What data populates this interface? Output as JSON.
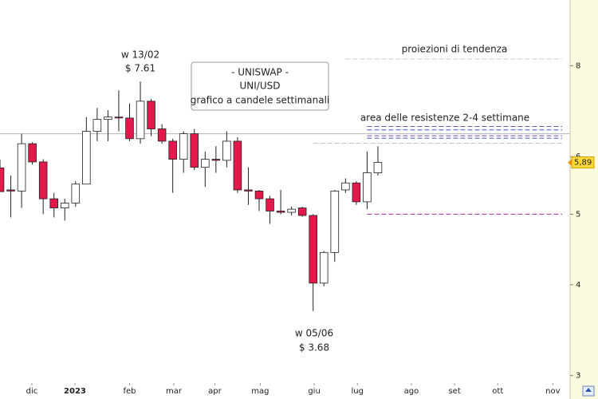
{
  "chart_data": {
    "type": "candlestick",
    "title_lines": [
      "- UNISWAP -",
      "UNI/USD",
      "grafico a candele settimanali"
    ],
    "x": [
      0,
      1,
      2,
      3,
      4,
      5,
      6,
      7,
      8,
      9,
      10,
      11,
      12,
      13,
      14,
      15,
      16,
      17,
      18,
      19,
      20,
      21,
      22,
      23,
      24,
      25,
      26,
      27,
      28,
      29,
      30,
      31,
      32,
      33,
      34,
      35
    ],
    "open": [
      5.79,
      5.4,
      5.38,
      6.25,
      5.9,
      5.25,
      5.1,
      5.18,
      5.5,
      6.5,
      6.75,
      6.8,
      6.78,
      6.35,
      7.15,
      6.55,
      6.3,
      5.95,
      6.45,
      5.8,
      5.95,
      5.93,
      6.3,
      5.4,
      5.38,
      5.25,
      5.05,
      5.03,
      5.1,
      4.98,
      4.02,
      4.43,
      5.4,
      5.52,
      5.2,
      5.7
    ],
    "high": [
      5.94,
      5.65,
      6.45,
      6.28,
      5.95,
      5.35,
      5.25,
      5.55,
      6.8,
      7.0,
      6.95,
      7.4,
      7.1,
      7.61,
      7.2,
      6.65,
      6.35,
      6.5,
      6.55,
      6.1,
      6.2,
      6.5,
      6.38,
      5.8,
      5.4,
      5.3,
      5.4,
      5.12,
      5.12,
      5.0,
      4.45,
      5.4,
      5.6,
      5.55,
      6.1,
      6.2
    ],
    "low": [
      5.37,
      4.95,
      5.1,
      5.85,
      5.0,
      4.95,
      4.9,
      5.12,
      5.5,
      6.3,
      6.3,
      6.5,
      6.3,
      6.25,
      6.4,
      6.25,
      5.35,
      5.7,
      5.75,
      5.45,
      5.7,
      5.8,
      5.35,
      5.15,
      5.05,
      4.85,
      5.0,
      4.98,
      4.96,
      3.68,
      3.98,
      4.3,
      5.35,
      5.15,
      5.08,
      5.65
    ],
    "close": [
      5.37,
      5.38,
      6.25,
      5.9,
      5.25,
      5.1,
      5.18,
      5.5,
      6.5,
      6.75,
      6.8,
      6.78,
      6.35,
      7.15,
      6.55,
      6.3,
      5.95,
      6.45,
      5.8,
      5.95,
      5.93,
      6.3,
      5.4,
      5.38,
      5.25,
      5.05,
      5.03,
      5.08,
      4.98,
      4.02,
      4.43,
      5.38,
      5.52,
      5.2,
      5.7,
      5.89
    ],
    "up_color": "#ffffff",
    "down_color": "#e3194b",
    "log_scale": true,
    "ylim": [
      2.93,
      9.85
    ],
    "yticks": [
      3,
      4,
      5,
      6,
      8
    ],
    "xlim": [
      0,
      52.8
    ],
    "xticks": [
      {
        "value": 2.95,
        "label": "dic"
      },
      {
        "value": 6.94,
        "label": "2023",
        "bold": true
      },
      {
        "value": 12.0,
        "label": "feb"
      },
      {
        "value": 16.1,
        "label": "mar"
      },
      {
        "value": 19.9,
        "label": "apr"
      },
      {
        "value": 24.1,
        "label": "mag"
      },
      {
        "value": 29.1,
        "label": "giu"
      },
      {
        "value": 33.1,
        "label": "lug"
      },
      {
        "value": 38.1,
        "label": "ago"
      },
      {
        "value": 42.1,
        "label": "set"
      },
      {
        "value": 46.1,
        "label": "ott"
      },
      {
        "value": 51.2,
        "label": "nov"
      }
    ],
    "last_price": {
      "value": 5.89,
      "label": "5,89"
    },
    "levels": [
      {
        "value": 6.45,
        "from": 0,
        "color": "#b4b4b4",
        "dashed": false
      },
      {
        "value": 6.6,
        "from": 34,
        "color": "#7a4fb5",
        "dashed": true
      },
      {
        "value": 6.53,
        "from": 34,
        "color": "#3d55c8",
        "dashed": true
      },
      {
        "value": 6.41,
        "from": 34,
        "color": "#7a4fb5",
        "dashed": true
      },
      {
        "value": 6.36,
        "from": 34,
        "color": "#3d55c8",
        "dashed": true
      },
      {
        "value": 6.26,
        "from": 29,
        "color": "#c4c4c4",
        "dashed": true
      },
      {
        "value": 5.0,
        "from": 34,
        "color": "#a8289a",
        "dashed": true
      },
      {
        "value": 8.17,
        "from": 32,
        "color": "#cccccc",
        "dashed": true
      }
    ],
    "annotations": {
      "high": [
        "w 13/02",
        "$ 7.61"
      ],
      "low": [
        "w 05/06",
        "$ 3.68"
      ],
      "projections": "proiezioni di tendenza",
      "resistances": "area delle resistenze 2-4 settimane"
    }
  }
}
